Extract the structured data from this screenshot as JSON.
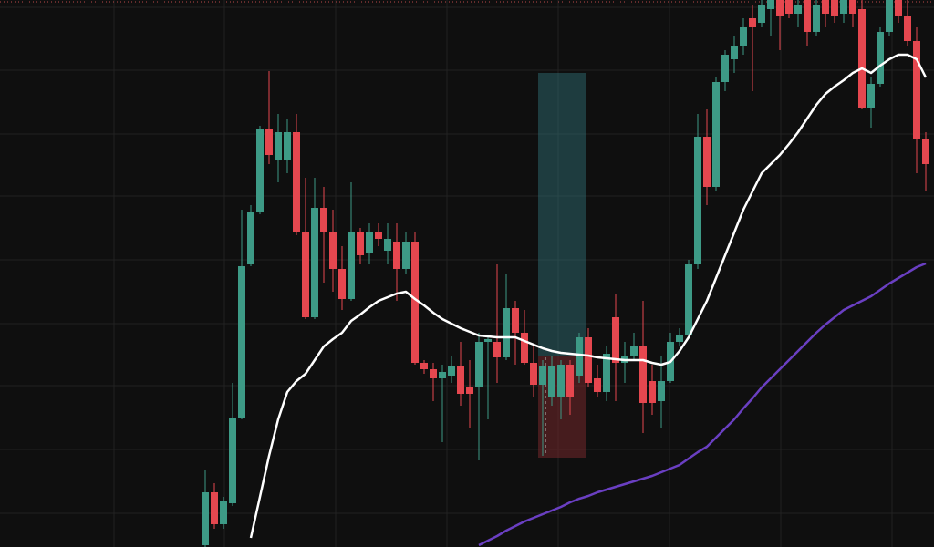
{
  "chart_data": {
    "type": "candlestick",
    "ylim": [
      0,
      600
    ],
    "up_color": "#3d9a86",
    "down_color": "#e5474f",
    "open": [
      2,
      60,
      25,
      48,
      142,
      310,
      368,
      458,
      425,
      425,
      455,
      345,
      252,
      372,
      345,
      305,
      272,
      345,
      322,
      345,
      325,
      335,
      305,
      335,
      202,
      195,
      185,
      188,
      198,
      175,
      175,
      225,
      225,
      208,
      262,
      235,
      202,
      178,
      165,
      165,
      200,
      188,
      230,
      185,
      170,
      252,
      202,
      210,
      220,
      182,
      160,
      182,
      225,
      232,
      310,
      450,
      395,
      510,
      535,
      550,
      580,
      575,
      590,
      600,
      600,
      585,
      600,
      565,
      600,
      600,
      585,
      600,
      590,
      482,
      508,
      565,
      600,
      582,
      555,
      448
    ],
    "high": [
      85,
      70,
      55,
      180,
      370,
      375,
      462,
      522,
      475,
      470,
      475,
      405,
      405,
      395,
      370,
      330,
      400,
      350,
      355,
      355,
      355,
      355,
      345,
      345,
      205,
      202,
      200,
      210,
      225,
      205,
      235,
      232,
      310,
      300,
      270,
      260,
      220,
      205,
      210,
      205,
      205,
      235,
      240,
      200,
      220,
      278,
      225,
      235,
      270,
      200,
      210,
      235,
      240,
      315,
      475,
      480,
      515,
      545,
      560,
      580,
      595,
      600,
      600,
      600,
      600,
      600,
      600,
      600,
      600,
      600,
      600,
      600,
      600,
      515,
      570,
      600,
      600,
      600,
      570,
      455
    ],
    "low": [
      0,
      20,
      20,
      45,
      140,
      308,
      365,
      420,
      400,
      410,
      342,
      250,
      250,
      290,
      280,
      260,
      270,
      310,
      310,
      330,
      310,
      270,
      300,
      200,
      190,
      160,
      115,
      180,
      155,
      130,
      95,
      140,
      180,
      205,
      200,
      200,
      165,
      100,
      155,
      140,
      145,
      180,
      175,
      165,
      160,
      160,
      180,
      205,
      125,
      145,
      130,
      180,
      220,
      228,
      305,
      375,
      390,
      500,
      520,
      540,
      500,
      570,
      560,
      545,
      580,
      570,
      550,
      560,
      570,
      575,
      575,
      570,
      480,
      460,
      505,
      560,
      575,
      550,
      410,
      390
    ],
    "close": [
      60,
      25,
      50,
      142,
      308,
      368,
      458,
      430,
      455,
      455,
      345,
      252,
      372,
      345,
      305,
      272,
      345,
      320,
      345,
      338,
      338,
      305,
      335,
      202,
      195,
      185,
      192,
      198,
      168,
      168,
      225,
      228,
      208,
      262,
      235,
      202,
      178,
      198,
      198,
      200,
      165,
      230,
      180,
      170,
      212,
      202,
      210,
      220,
      158,
      158,
      182,
      225,
      232,
      310,
      450,
      395,
      510,
      540,
      550,
      570,
      570,
      595,
      600,
      582,
      585,
      595,
      565,
      595,
      585,
      582,
      600,
      585,
      482,
      508,
      565,
      600,
      582,
      555,
      448,
      420
    ],
    "series": [
      {
        "color": "#ffffff",
        "values": [
          null,
          null,
          null,
          null,
          null,
          10,
          55,
          100,
          140,
          170,
          182,
          190,
          205,
          220,
          228,
          235,
          248,
          255,
          263,
          270,
          274,
          278,
          280,
          272,
          265,
          257,
          250,
          245,
          240,
          236,
          232,
          231,
          230,
          230,
          230,
          226,
          222,
          218,
          215,
          213,
          212,
          211,
          210,
          208,
          207,
          206,
          205,
          205,
          205,
          202,
          200,
          203,
          215,
          230,
          250,
          270,
          295,
          320,
          345,
          370,
          390,
          410,
          420,
          430,
          442,
          455,
          470,
          485,
          497,
          505,
          512,
          520,
          525,
          520,
          528,
          535,
          540,
          540,
          535,
          515
        ]
      },
      {
        "color": "#6a3fc2",
        "values": [
          null,
          null,
          null,
          null,
          null,
          null,
          null,
          null,
          null,
          null,
          null,
          null,
          null,
          null,
          null,
          null,
          null,
          null,
          null,
          null,
          null,
          null,
          null,
          null,
          null,
          null,
          null,
          null,
          null,
          null,
          2,
          7,
          12,
          18,
          23,
          28,
          32,
          36,
          40,
          44,
          49,
          53,
          56,
          60,
          63,
          66,
          69,
          72,
          75,
          78,
          82,
          86,
          90,
          97,
          104,
          110,
          120,
          130,
          140,
          152,
          163,
          175,
          185,
          195,
          205,
          215,
          225,
          235,
          244,
          252,
          260,
          265,
          270,
          275,
          282,
          289,
          295,
          301,
          307,
          311
        ]
      }
    ]
  }
}
